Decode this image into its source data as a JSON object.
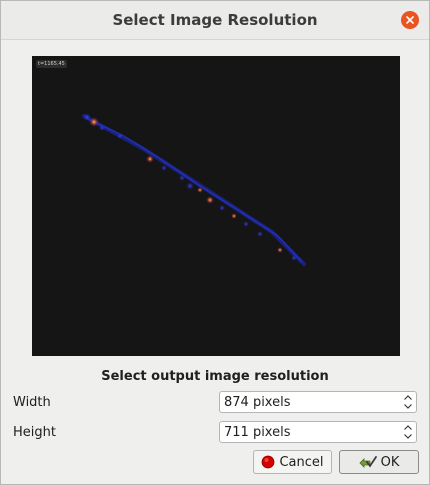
{
  "dialog": {
    "title": "Select Image Resolution"
  },
  "preview": {
    "time_label": "t=1165.45"
  },
  "form": {
    "heading": "Select output image resolution",
    "width_label": "Width",
    "width_value": "874 pixels",
    "height_label": "Height",
    "height_value": "711 pixels"
  },
  "buttons": {
    "cancel_label": "Cancel",
    "ok_label": "OK"
  },
  "colors": {
    "close_button": "#e95420",
    "preview_background": "#151515",
    "cancel_icon": "#d40000"
  },
  "icons": {
    "close": "close-icon",
    "cancel": "cancel-icon",
    "ok": "ok-icon",
    "spin_up": "chevron-up-icon",
    "spin_down": "chevron-down-icon"
  }
}
